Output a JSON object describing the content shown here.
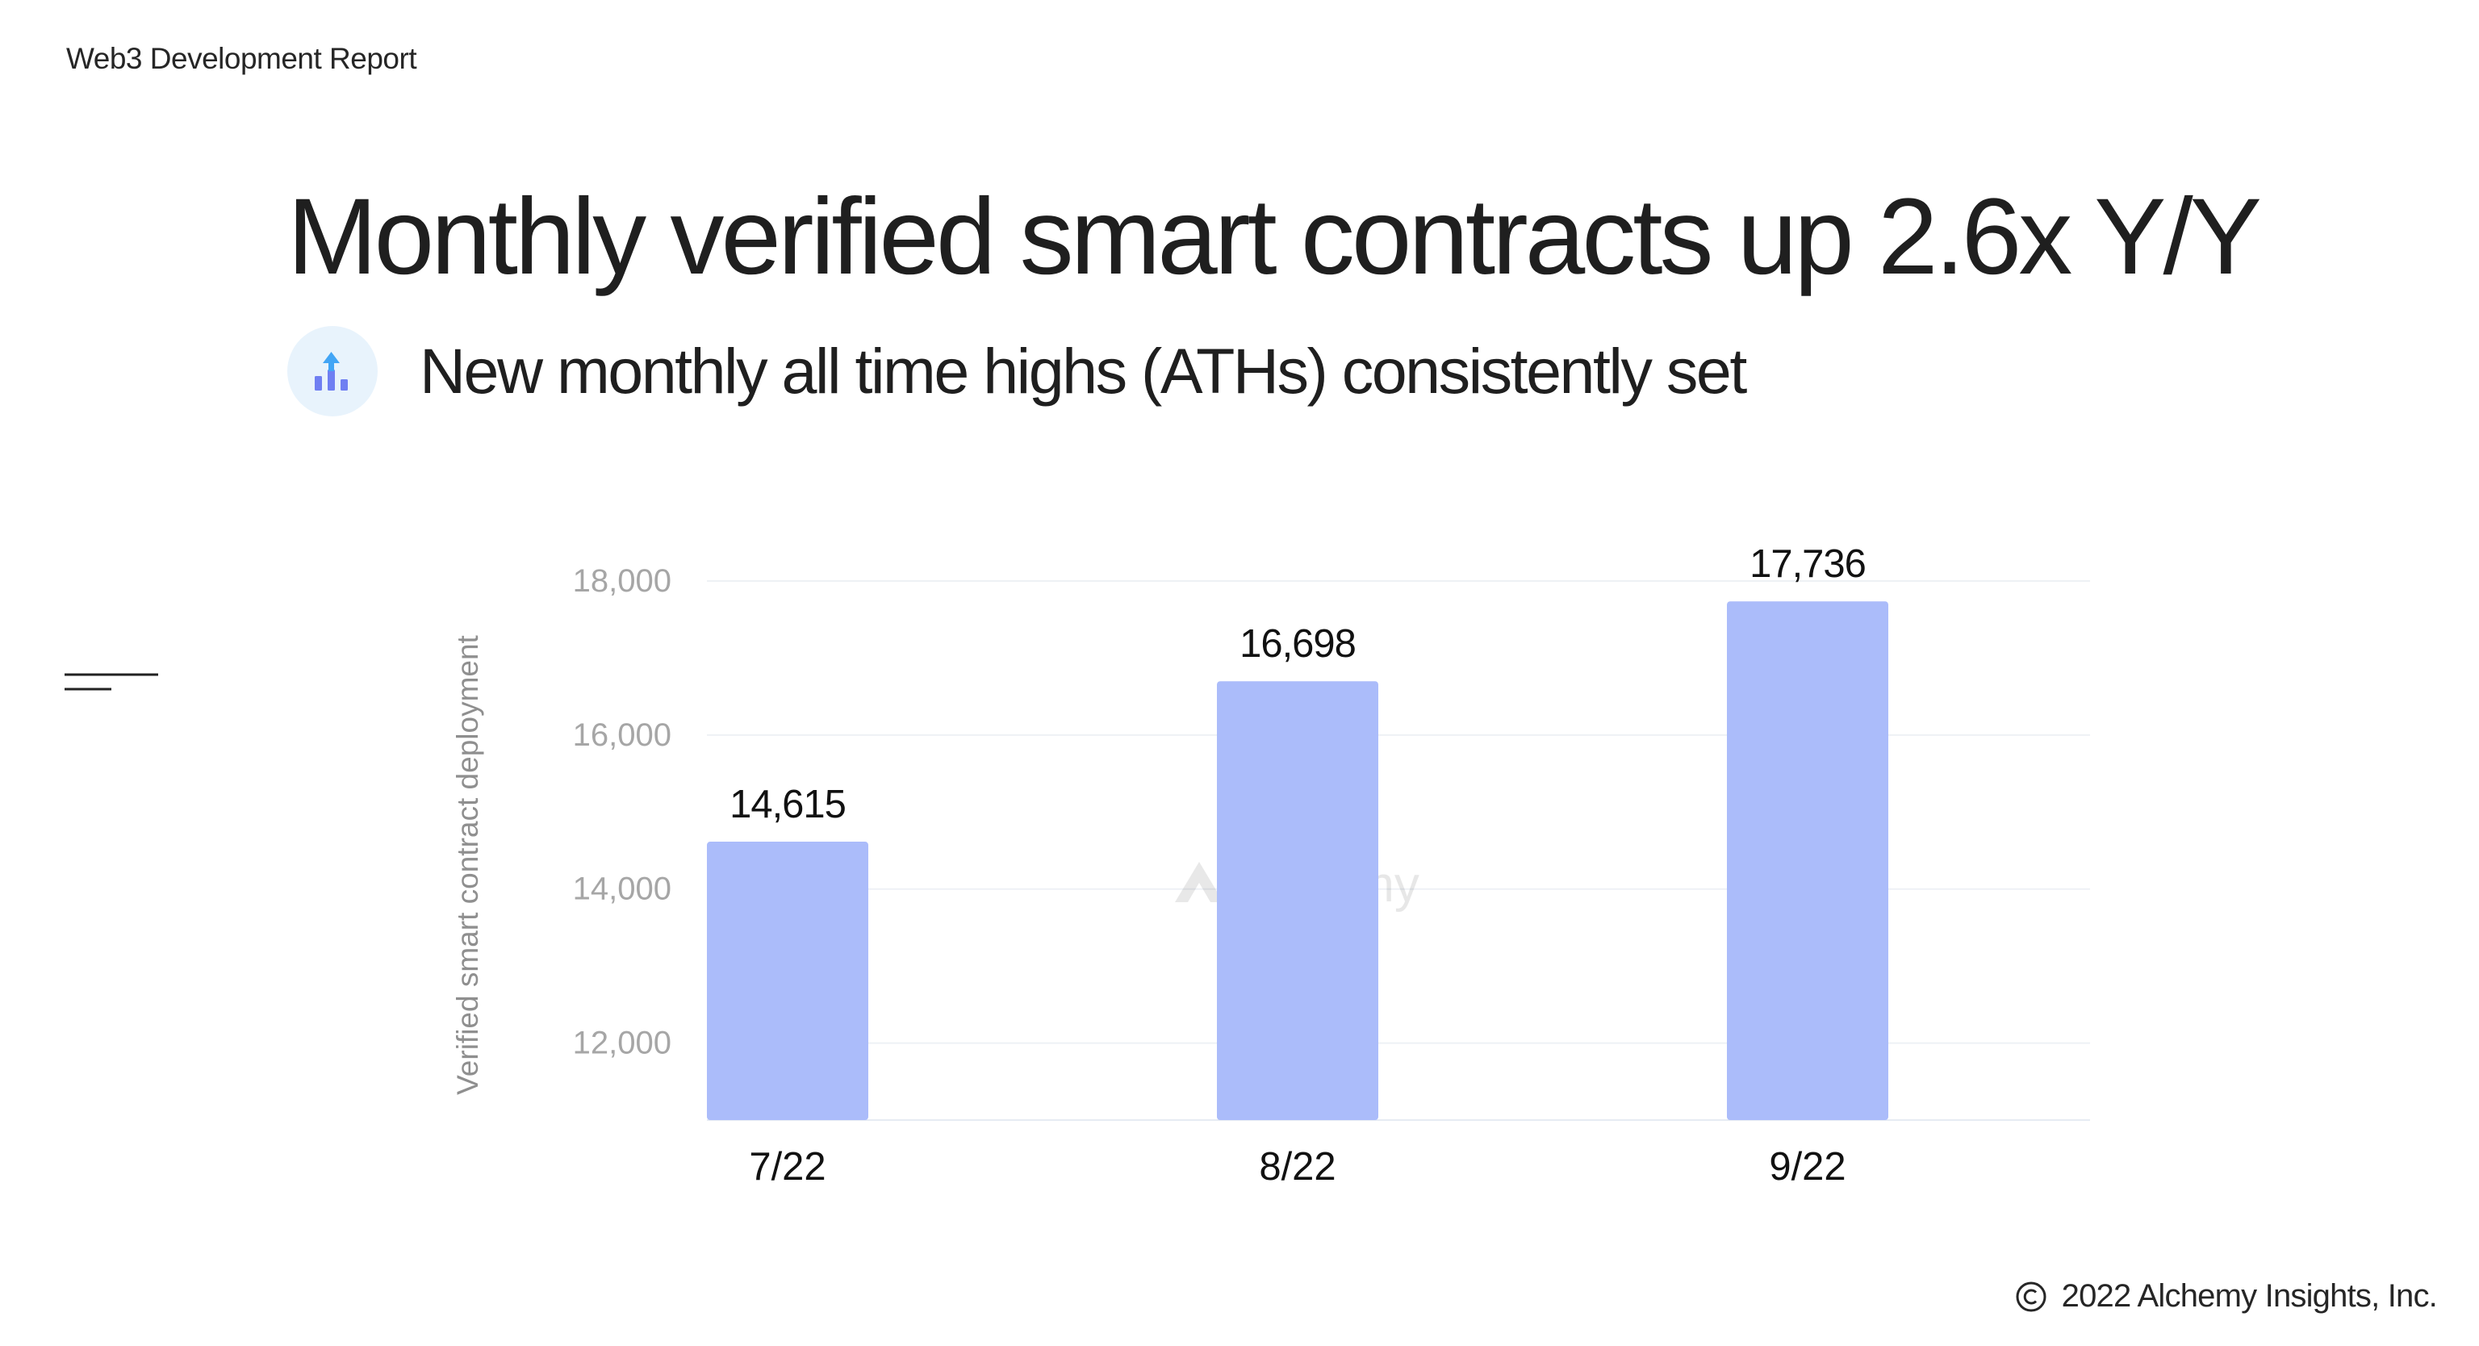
{
  "header": {
    "report_label": "Web3 Development Report"
  },
  "slide": {
    "title": "Monthly verified smart contracts up 2.6x Y/Y",
    "subtitle": "New monthly all time highs (ATHs) consistently set",
    "subtitle_icon": "bar-chart-up-arrow-icon"
  },
  "footer": {
    "copyright": "2022 Alchemy Insights, Inc.",
    "copyright_icon": "copyright-icon"
  },
  "watermark": {
    "text": "alchemy",
    "icon": "alchemy-logo-icon"
  },
  "colors": {
    "bar": "#abbcfa",
    "grid": "#eef1f5",
    "tick_label": "#a6a6a6",
    "axis_title": "#8f8f8f",
    "data_label": "#111111"
  },
  "chart_data": {
    "type": "bar",
    "categories": [
      "7/22",
      "8/22",
      "9/22"
    ],
    "values": [
      14615,
      16698,
      17736
    ],
    "data_labels": [
      "14,615",
      "16,698",
      "17,736"
    ],
    "title": "",
    "xlabel": "",
    "ylabel": "Verified smart contract deployment",
    "yticks": [
      12000,
      14000,
      16000,
      18000
    ],
    "ytick_labels": [
      "12,000",
      "14,000",
      "16,000",
      "18,000"
    ],
    "ylim": [
      11000,
      18000
    ],
    "grid": true,
    "legend": "none"
  }
}
